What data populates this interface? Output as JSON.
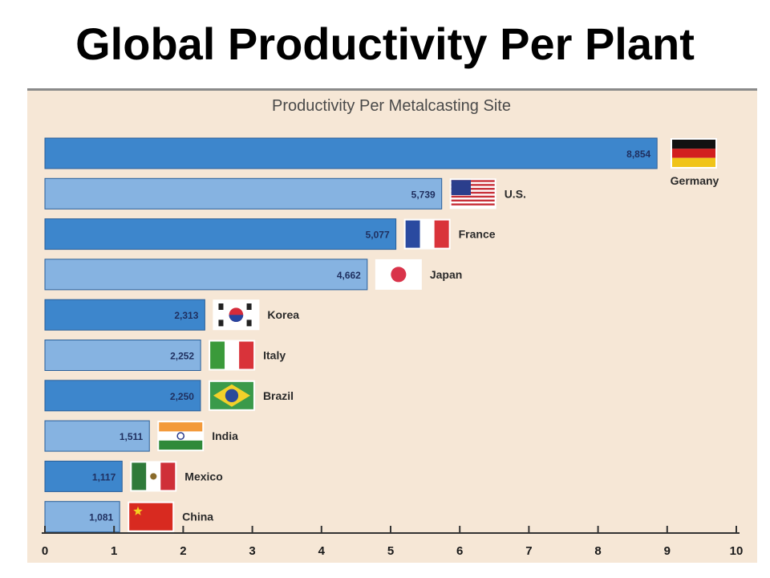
{
  "slide": {
    "title": "Global Productivity Per Plant"
  },
  "chart_data": {
    "type": "bar",
    "orientation": "horizontal",
    "title": "Productivity Per Metalcasting Site",
    "categories": [
      "Germany",
      "U.S.",
      "France",
      "Japan",
      "Korea",
      "Italy",
      "Brazil",
      "India",
      "Mexico",
      "China"
    ],
    "values": [
      8.854,
      5.739,
      5.077,
      4.662,
      2.313,
      2.252,
      2.25,
      1.511,
      1.117,
      1.081
    ],
    "value_labels": [
      "8,854",
      "5,739",
      "5,077",
      "4,662",
      "2,313",
      "2,252",
      "2,250",
      "1,511",
      "1,117",
      "1,081"
    ],
    "xlim": [
      0,
      10
    ],
    "xticks": [
      "0",
      "1",
      "2",
      "3",
      "4",
      "5",
      "6",
      "7",
      "8",
      "9",
      "10"
    ],
    "grid": false,
    "colors": {
      "bar_dark": "#3d86cc",
      "bar_light": "#86b3e1",
      "plot_bg": "#f6e7d6",
      "page_bg": "#ffffff"
    },
    "flags": [
      "germany-flag-icon",
      "us-flag-icon",
      "france-flag-icon",
      "japan-flag-icon",
      "korea-flag-icon",
      "italy-flag-icon",
      "brazil-flag-icon",
      "india-flag-icon",
      "mexico-flag-icon",
      "china-flag-icon"
    ]
  }
}
